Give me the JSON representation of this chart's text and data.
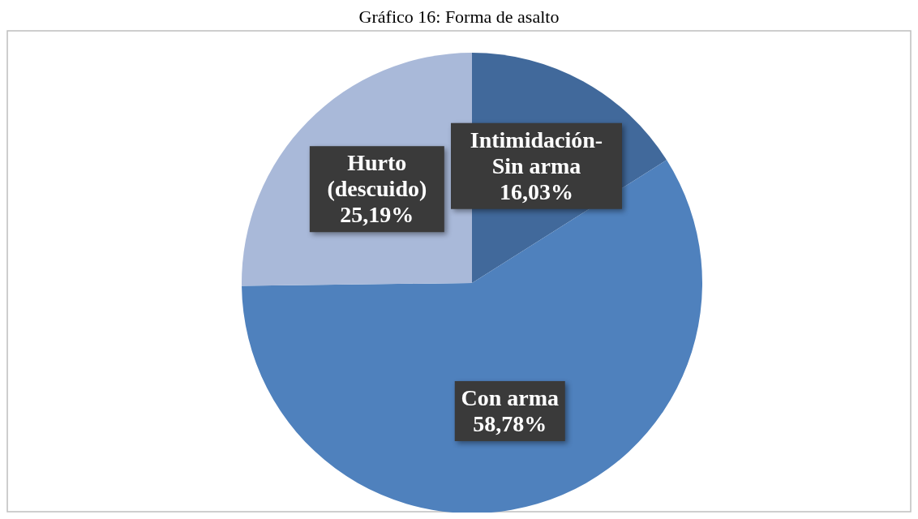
{
  "chart_data": {
    "type": "pie",
    "title": "Gráfico 16: Forma de asalto",
    "categories": [
      "Intimidación-Sin arma",
      "Con arma",
      "Hurto (descuido)"
    ],
    "values": [
      16.03,
      58.78,
      25.19
    ],
    "colors": [
      "#41699b",
      "#4f81bd",
      "#a9b9d9"
    ],
    "value_labels": [
      "16,03%",
      "58,78%",
      "25,19%"
    ],
    "legend": false
  }
}
